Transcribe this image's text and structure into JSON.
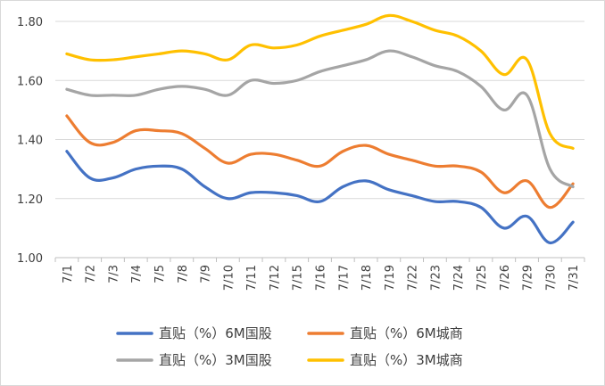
{
  "chart_data": {
    "type": "line",
    "title": "",
    "xlabel": "",
    "ylabel": "",
    "ylim": [
      1.0,
      1.8
    ],
    "yticks": [
      "1.00",
      "1.20",
      "1.40",
      "1.60",
      "1.80"
    ],
    "grid": "horizontal",
    "legend": "bottom",
    "categories": [
      "7/1",
      "7/2",
      "7/3",
      "7/4",
      "7/5",
      "7/8",
      "7/9",
      "7/10",
      "7/11",
      "7/12",
      "7/15",
      "7/16",
      "7/17",
      "7/18",
      "7/19",
      "7/22",
      "7/23",
      "7/24",
      "7/25",
      "7/26",
      "7/29",
      "7/30",
      "7/31"
    ],
    "series": [
      {
        "name": "直贴（%）6M国股",
        "color": "#4472c4",
        "values": [
          1.36,
          1.27,
          1.27,
          1.3,
          1.31,
          1.3,
          1.24,
          1.2,
          1.22,
          1.22,
          1.21,
          1.19,
          1.24,
          1.26,
          1.23,
          1.21,
          1.19,
          1.19,
          1.17,
          1.1,
          1.14,
          1.05,
          1.12
        ]
      },
      {
        "name": "直贴（%）6M城商",
        "color": "#ed7d31",
        "values": [
          1.48,
          1.39,
          1.39,
          1.43,
          1.43,
          1.42,
          1.37,
          1.32,
          1.35,
          1.35,
          1.33,
          1.31,
          1.36,
          1.38,
          1.35,
          1.33,
          1.31,
          1.31,
          1.29,
          1.22,
          1.26,
          1.17,
          1.25
        ]
      },
      {
        "name": "直贴（%）3M国股",
        "color": "#a5a5a5",
        "values": [
          1.57,
          1.55,
          1.55,
          1.55,
          1.57,
          1.58,
          1.57,
          1.55,
          1.6,
          1.59,
          1.6,
          1.63,
          1.65,
          1.67,
          1.7,
          1.68,
          1.65,
          1.63,
          1.58,
          1.5,
          1.55,
          1.3,
          1.24
        ]
      },
      {
        "name": "直贴（%）3M城商",
        "color": "#ffc000",
        "values": [
          1.69,
          1.67,
          1.67,
          1.68,
          1.69,
          1.7,
          1.69,
          1.67,
          1.72,
          1.71,
          1.72,
          1.75,
          1.77,
          1.79,
          1.82,
          1.8,
          1.77,
          1.75,
          1.7,
          1.62,
          1.67,
          1.42,
          1.37
        ]
      }
    ]
  }
}
